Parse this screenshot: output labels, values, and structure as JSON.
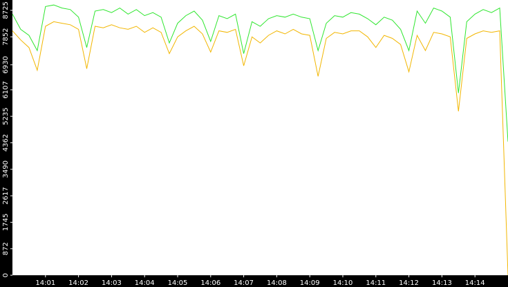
{
  "chart_data": {
    "type": "line",
    "x": [
      840,
      840.25,
      840.5,
      840.75,
      841,
      841.25,
      841.5,
      841.75,
      842,
      842.25,
      842.5,
      842.75,
      843,
      843.25,
      843.5,
      843.75,
      844,
      844.25,
      844.5,
      844.75,
      845,
      845.25,
      845.5,
      845.75,
      846,
      846.25,
      846.5,
      846.75,
      847,
      847.25,
      847.5,
      847.75,
      848,
      848.25,
      848.5,
      848.75,
      849,
      849.25,
      849.5,
      849.75,
      850,
      850.25,
      850.5,
      850.75,
      851,
      851.25,
      851.5,
      851.75,
      852,
      852.25,
      852.5,
      852.75,
      853,
      853.25,
      853.5,
      853.75,
      854,
      854.25,
      854.5,
      854.75,
      855
    ],
    "series": [
      {
        "color": "#2ee62e",
        "values": [
          8600,
          8100,
          7900,
          7400,
          8850,
          8900,
          8800,
          8750,
          8500,
          7500,
          8700,
          8750,
          8650,
          8800,
          8600,
          8750,
          8550,
          8650,
          8500,
          7650,
          8300,
          8550,
          8700,
          8400,
          7700,
          8550,
          8450,
          8600,
          7300,
          8350,
          8200,
          8450,
          8550,
          8500,
          8600,
          8500,
          8450,
          7400,
          8300,
          8550,
          8500,
          8650,
          8600,
          8450,
          8250,
          8500,
          8400,
          8100,
          7400,
          8700,
          8300,
          8800,
          8700,
          8500,
          6000,
          8350,
          8600,
          8750,
          8650,
          8800,
          4400
        ]
      },
      {
        "color": "#f2b600",
        "values": [
          8050,
          7750,
          7500,
          6750,
          8200,
          8350,
          8300,
          8250,
          8100,
          6800,
          8200,
          8150,
          8250,
          8150,
          8100,
          8200,
          8000,
          8150,
          8000,
          7300,
          7850,
          8050,
          8200,
          7950,
          7350,
          8050,
          8000,
          8100,
          6900,
          7850,
          7650,
          7900,
          8050,
          7950,
          8100,
          7950,
          7900,
          6550,
          7800,
          8000,
          7950,
          8050,
          8050,
          7850,
          7500,
          7900,
          7800,
          7600,
          6700,
          7900,
          7400,
          8000,
          7950,
          7850,
          5400,
          7800,
          7950,
          8050,
          8000,
          8050,
          0
        ]
      }
    ],
    "xlim": [
      840,
      855
    ],
    "xticks": [
      {
        "value": 841,
        "label": "14:01"
      },
      {
        "value": 842,
        "label": "14:02"
      },
      {
        "value": 843,
        "label": "14:03"
      },
      {
        "value": 844,
        "label": "14:04"
      },
      {
        "value": 845,
        "label": "14:05"
      },
      {
        "value": 846,
        "label": "14:06"
      },
      {
        "value": 847,
        "label": "14:07"
      },
      {
        "value": 848,
        "label": "14:08"
      },
      {
        "value": 849,
        "label": "14:09"
      },
      {
        "value": 850,
        "label": "14:10"
      },
      {
        "value": 851,
        "label": "14:11"
      },
      {
        "value": 852,
        "label": "14:12"
      },
      {
        "value": 853,
        "label": "14:13"
      },
      {
        "value": 854,
        "label": "14:14"
      }
    ],
    "ylim": [
      0,
      9065
    ],
    "yticks": [
      0,
      872,
      1745,
      2617,
      3490,
      4362,
      5235,
      6107,
      6930,
      7852,
      8725
    ]
  }
}
